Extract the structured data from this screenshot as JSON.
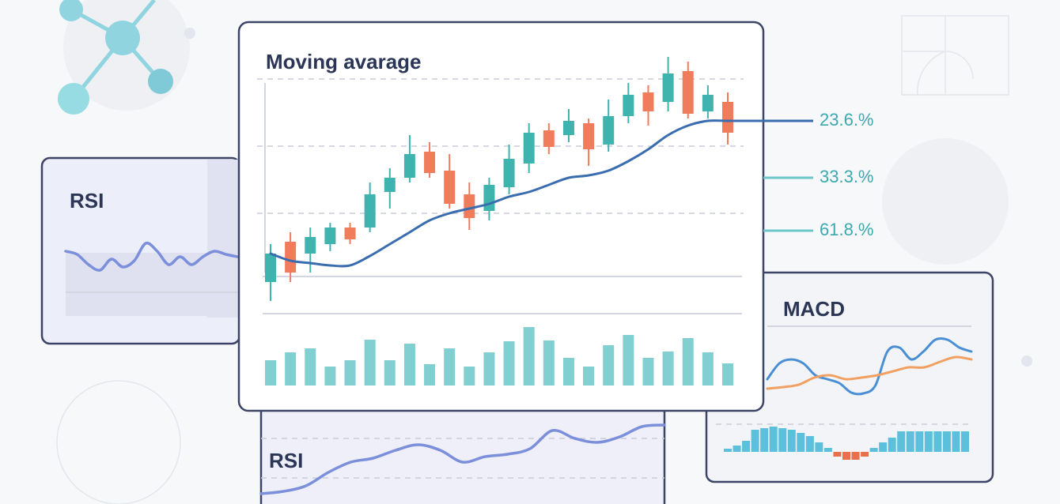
{
  "chart_data": [
    {
      "type": "candlestick",
      "title": "Moving avarage",
      "open": [
        11,
        28,
        23,
        27,
        34,
        34,
        49,
        55,
        66,
        58,
        48,
        41,
        51,
        61,
        75,
        73,
        78,
        69,
        81,
        91,
        87,
        100,
        83,
        87
      ],
      "high": [
        27,
        32,
        34,
        36,
        36,
        53,
        59,
        73,
        70,
        65,
        53,
        55,
        69,
        78,
        78,
        84,
        80,
        88,
        95,
        94,
        106,
        104,
        94,
        91
      ],
      "low": [
        3,
        11,
        15,
        24,
        27,
        32,
        42,
        53,
        55,
        42,
        33,
        37,
        48,
        57,
        65,
        70,
        60,
        66,
        78,
        77,
        83,
        80,
        80,
        69
      ],
      "close": [
        23,
        15,
        30,
        34,
        29,
        48,
        55,
        65,
        57,
        44,
        38,
        52,
        63,
        74,
        68,
        79,
        67,
        81,
        90,
        83,
        99,
        82,
        90,
        74
      ],
      "ylim": [
        0,
        110
      ],
      "up_color": "#3fb3ad",
      "down_color": "#f07c5c",
      "moving_average": {
        "color": "#3a6db0",
        "values": [
          23,
          20,
          19,
          18,
          18,
          22,
          27,
          32,
          37,
          40,
          42,
          44,
          47,
          49,
          52,
          55,
          56,
          58,
          62,
          67,
          73,
          77,
          79,
          79
        ]
      },
      "volume": {
        "color": "#6cc7c9",
        "ylim": [
          0,
          80
        ],
        "values": [
          32,
          42,
          47,
          24,
          32,
          58,
          32,
          53,
          27,
          47,
          24,
          42,
          56,
          74,
          57,
          35,
          24,
          51,
          64,
          35,
          43,
          60,
          42,
          28
        ]
      },
      "levels": [
        {
          "value": 23.6,
          "label": "23.6.%"
        },
        {
          "value": 33.3,
          "label": "33.3.%"
        },
        {
          "value": 61.8,
          "label": "61.8.%"
        }
      ]
    },
    {
      "type": "line",
      "title": "RSI",
      "ylim": [
        0,
        100
      ],
      "series": [
        {
          "color": "#7b8fda",
          "values": [
            82,
            78,
            65,
            58,
            72,
            62,
            70,
            92,
            82,
            65,
            75,
            65,
            75,
            82,
            78,
            75
          ]
        }
      ]
    },
    {
      "type": "line",
      "title": "RSI",
      "ylim": [
        0,
        120
      ],
      "series": [
        {
          "color": "#7b8fda",
          "values": [
            15,
            18,
            25,
            42,
            55,
            60,
            70,
            77,
            70,
            55,
            62,
            65,
            72,
            95,
            85,
            80,
            87,
            100,
            102
          ]
        }
      ]
    },
    {
      "type": "macd",
      "title": "MACD",
      "ylim": [
        0,
        100
      ],
      "series": [
        {
          "color": "#4a8fd4",
          "values": [
            40,
            60,
            65,
            60,
            45,
            40,
            35,
            23,
            22,
            32,
            75,
            80,
            65,
            75,
            90,
            90,
            80,
            75
          ]
        },
        {
          "color": "#f2a062",
          "values": [
            28,
            30,
            33,
            42,
            45,
            40,
            42,
            45,
            50,
            55,
            55,
            62,
            68,
            65
          ]
        }
      ],
      "histogram": {
        "ylim": [
          -40,
          40
        ],
        "up_color": "#5cc0dc",
        "down_color": "#e8704a",
        "values": [
          4,
          8,
          14,
          28,
          30,
          32,
          30,
          28,
          24,
          20,
          12,
          5,
          -6,
          -10,
          -10,
          -6,
          5,
          12,
          18,
          26,
          26,
          26,
          26,
          26,
          26,
          26,
          26
        ]
      }
    }
  ]
}
